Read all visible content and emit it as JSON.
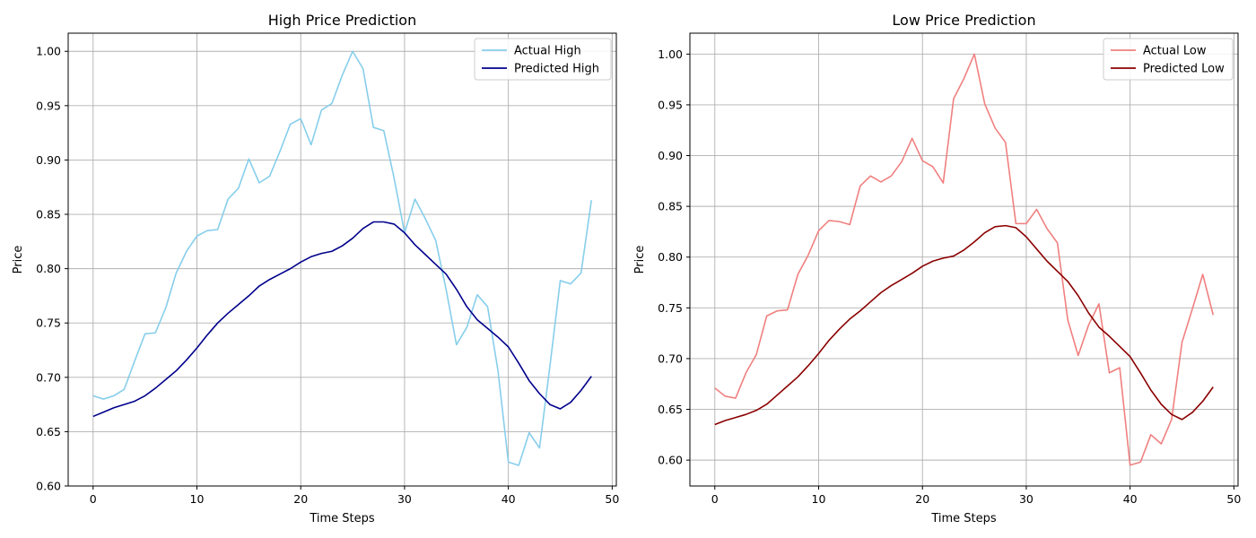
{
  "chart_data": [
    {
      "type": "line",
      "title": "High Price Prediction",
      "xlabel": "Time Steps",
      "ylabel": "Price",
      "xlim": [
        -2.4,
        50.4
      ],
      "ylim": [
        0.6,
        1.0167
      ],
      "xticks": [
        0,
        10,
        20,
        30,
        40,
        50
      ],
      "yticks": [
        0.6,
        0.65,
        0.7,
        0.75,
        0.8,
        0.85,
        0.9,
        0.95,
        1.0
      ],
      "grid": true,
      "legend_position": "top-right",
      "x": [
        0,
        1,
        2,
        3,
        4,
        5,
        6,
        7,
        8,
        9,
        10,
        11,
        12,
        13,
        14,
        15,
        16,
        17,
        18,
        19,
        20,
        21,
        22,
        23,
        24,
        25,
        26,
        27,
        28,
        29,
        30,
        31,
        32,
        33,
        34,
        35,
        36,
        37,
        38,
        39,
        40,
        41,
        42,
        43,
        44,
        45,
        46,
        47,
        48
      ],
      "series": [
        {
          "name": "Actual High",
          "color": "#87ceeb",
          "values": [
            0.683,
            0.68,
            0.683,
            0.689,
            0.715,
            0.74,
            0.741,
            0.764,
            0.796,
            0.816,
            0.83,
            0.835,
            0.836,
            0.864,
            0.874,
            0.901,
            0.879,
            0.885,
            0.908,
            0.933,
            0.938,
            0.914,
            0.946,
            0.952,
            0.978,
            1.0,
            0.984,
            0.93,
            0.927,
            0.883,
            0.833,
            0.864,
            0.846,
            0.826,
            0.781,
            0.73,
            0.746,
            0.776,
            0.765,
            0.706,
            0.622,
            0.619,
            0.649,
            0.635,
            0.71,
            0.789,
            0.786,
            0.796,
            0.863
          ]
        },
        {
          "name": "Predicted High",
          "color": "#00008b",
          "values": [
            0.664,
            0.668,
            0.672,
            0.675,
            0.678,
            0.683,
            0.69,
            0.698,
            0.706,
            0.716,
            0.727,
            0.739,
            0.75,
            0.759,
            0.767,
            0.775,
            0.784,
            0.79,
            0.795,
            0.8,
            0.806,
            0.811,
            0.814,
            0.816,
            0.821,
            0.828,
            0.837,
            0.843,
            0.843,
            0.841,
            0.833,
            0.822,
            0.813,
            0.804,
            0.795,
            0.781,
            0.765,
            0.753,
            0.745,
            0.737,
            0.728,
            0.713,
            0.697,
            0.685,
            0.675,
            0.671,
            0.677,
            0.688,
            0.701
          ]
        }
      ]
    },
    {
      "type": "line",
      "title": "Low Price Prediction",
      "xlabel": "Time Steps",
      "ylabel": "Price",
      "xlim": [
        -2.4,
        50.4
      ],
      "ylim": [
        0.5745,
        1.0206
      ],
      "xticks": [
        0,
        10,
        20,
        30,
        40,
        50
      ],
      "yticks": [
        0.6,
        0.65,
        0.7,
        0.75,
        0.8,
        0.85,
        0.9,
        0.95,
        1.0
      ],
      "grid": true,
      "legend_position": "top-right",
      "x": [
        0,
        1,
        2,
        3,
        4,
        5,
        6,
        7,
        8,
        9,
        10,
        11,
        12,
        13,
        14,
        15,
        16,
        17,
        18,
        19,
        20,
        21,
        22,
        23,
        24,
        25,
        26,
        27,
        28,
        29,
        30,
        31,
        32,
        33,
        34,
        35,
        36,
        37,
        38,
        39,
        40,
        41,
        42,
        43,
        44,
        45,
        46,
        47,
        48
      ],
      "series": [
        {
          "name": "Actual Low",
          "color": "#f08080",
          "values": [
            0.671,
            0.663,
            0.661,
            0.686,
            0.704,
            0.742,
            0.747,
            0.748,
            0.783,
            0.802,
            0.826,
            0.836,
            0.835,
            0.832,
            0.87,
            0.88,
            0.874,
            0.88,
            0.894,
            0.917,
            0.895,
            0.889,
            0.873,
            0.956,
            0.976,
            1.0,
            0.951,
            0.927,
            0.913,
            0.833,
            0.833,
            0.847,
            0.828,
            0.814,
            0.738,
            0.703,
            0.733,
            0.754,
            0.686,
            0.691,
            0.595,
            0.598,
            0.625,
            0.616,
            0.64,
            0.716,
            0.749,
            0.783,
            0.743
          ]
        },
        {
          "name": "Predicted Low",
          "color": "#8b0000",
          "values": [
            0.635,
            0.639,
            0.642,
            0.645,
            0.649,
            0.655,
            0.664,
            0.673,
            0.682,
            0.693,
            0.705,
            0.718,
            0.729,
            0.739,
            0.747,
            0.756,
            0.765,
            0.772,
            0.778,
            0.784,
            0.791,
            0.796,
            0.799,
            0.801,
            0.807,
            0.815,
            0.824,
            0.83,
            0.831,
            0.829,
            0.82,
            0.808,
            0.796,
            0.786,
            0.776,
            0.762,
            0.745,
            0.731,
            0.722,
            0.712,
            0.702,
            0.686,
            0.669,
            0.655,
            0.645,
            0.64,
            0.647,
            0.658,
            0.672
          ]
        }
      ]
    }
  ]
}
